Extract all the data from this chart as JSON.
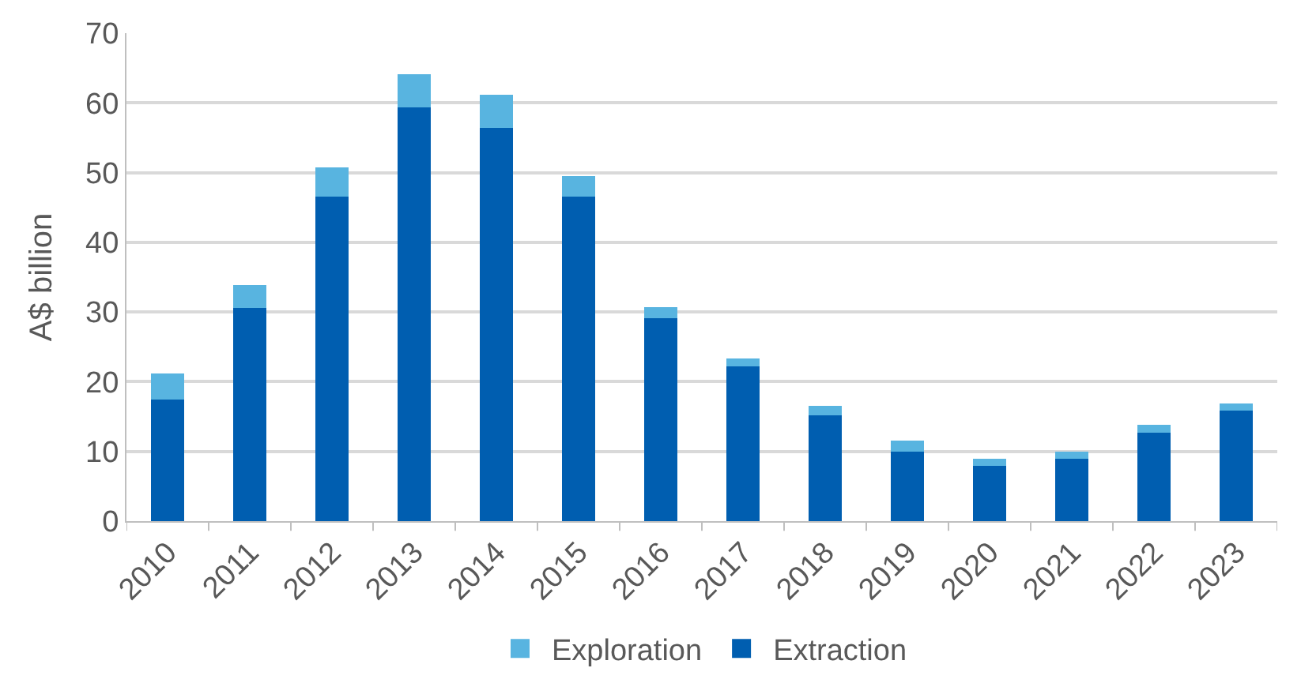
{
  "chart_data": {
    "type": "bar",
    "stacked": true,
    "ylabel": "A$ billion",
    "categories": [
      "2010",
      "2011",
      "2012",
      "2013",
      "2014",
      "2015",
      "2016",
      "2017",
      "2018",
      "2019",
      "2020",
      "2021",
      "2022",
      "2023"
    ],
    "series": [
      {
        "name": "Extraction",
        "color": "#005eb0",
        "values": [
          17.5,
          30.6,
          46.6,
          59.4,
          56.4,
          46.6,
          29.1,
          22.2,
          15.2,
          10.0,
          7.9,
          8.9,
          12.7,
          15.9
        ]
      },
      {
        "name": "Exploration",
        "color": "#58b4e0",
        "values": [
          3.7,
          3.3,
          4.1,
          4.7,
          4.8,
          2.9,
          1.6,
          1.1,
          1.3,
          1.5,
          1.1,
          1.1,
          1.1,
          1.0
        ]
      }
    ],
    "ylim": [
      0,
      70
    ],
    "yticks": [
      0,
      10,
      20,
      30,
      40,
      50,
      60,
      70
    ],
    "grid": "y",
    "legend": "bottom"
  }
}
